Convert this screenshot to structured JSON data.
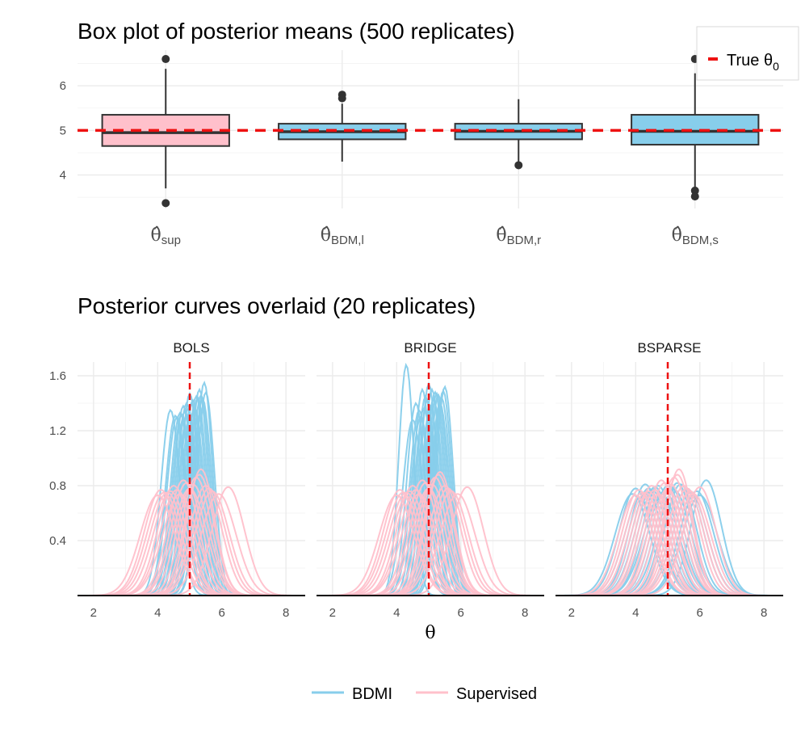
{
  "chart_data": [
    {
      "type": "box",
      "title": "Box plot of posterior means (500 replicates)",
      "ylim": [
        3.25,
        6.8
      ],
      "yticks": [
        4,
        5,
        6
      ],
      "reference_line": {
        "value": 5,
        "label": "True θ",
        "label_sub": "0",
        "color": "#ee1111"
      },
      "boxes": [
        {
          "label": "θ̂",
          "sub": "sup",
          "fill": "#ffc0cb",
          "q1": 4.65,
          "median": 4.95,
          "q3": 5.35,
          "whisker_low": 3.7,
          "whisker_high": 6.38,
          "outliers": [
            6.6,
            3.37
          ]
        },
        {
          "label": "θ̂",
          "sub": "BDM,l",
          "fill": "#87ceeb",
          "q1": 4.8,
          "median": 4.97,
          "q3": 5.15,
          "whisker_low": 4.3,
          "whisker_high": 5.6,
          "outliers": [
            5.8,
            5.72
          ]
        },
        {
          "label": "θ̂",
          "sub": "BDM,r",
          "fill": "#87ceeb",
          "q1": 4.8,
          "median": 4.98,
          "q3": 5.15,
          "whisker_low": 4.3,
          "whisker_high": 5.7,
          "outliers": [
            4.22
          ]
        },
        {
          "label": "θ̂",
          "sub": "BDM,s",
          "fill": "#87ceeb",
          "q1": 4.68,
          "median": 4.98,
          "q3": 5.35,
          "whisker_low": 3.72,
          "whisker_high": 6.28,
          "outliers": [
            6.6,
            3.65,
            3.52
          ]
        }
      ]
    },
    {
      "type": "line",
      "title": "Posterior curves overlaid (20 replicates)",
      "xlabel": "θ",
      "xlim": [
        1.5,
        8.6
      ],
      "ylim": [
        0,
        1.7
      ],
      "xticks": [
        2,
        4,
        6,
        8
      ],
      "yticks": [
        0.4,
        0.8,
        1.2,
        1.6
      ],
      "reference_line": {
        "value": 5,
        "color": "#ee1111"
      },
      "legend": {
        "position": "bottom",
        "entries": [
          {
            "name": "BDMI",
            "color": "#87ceeb"
          },
          {
            "name": "Supervised",
            "color": "#ffc0cb"
          }
        ]
      },
      "panels": [
        {
          "strip": "BOLS",
          "series": [
            {
              "name": "BDMI",
              "curves": [
                {
                  "mean": 4.4,
                  "peak": 1.35
                },
                {
                  "mean": 4.6,
                  "peak": 1.3
                },
                {
                  "mean": 5.0,
                  "peak": 1.47
                },
                {
                  "mean": 5.45,
                  "peak": 1.55
                },
                {
                  "mean": 4.9,
                  "peak": 1.4
                },
                {
                  "mean": 5.2,
                  "peak": 1.45
                },
                {
                  "mean": 5.3,
                  "peak": 1.5
                },
                {
                  "mean": 4.8,
                  "peak": 1.38
                },
                {
                  "mean": 5.1,
                  "peak": 1.42
                },
                {
                  "mean": 4.7,
                  "peak": 1.33
                },
                {
                  "mean": 5.5,
                  "peak": 1.48
                },
                {
                  "mean": 4.95,
                  "peak": 1.36
                },
                {
                  "mean": 5.25,
                  "peak": 1.44
                },
                {
                  "mean": 5.05,
                  "peak": 1.4
                },
                {
                  "mean": 4.85,
                  "peak": 1.34
                },
                {
                  "mean": 5.35,
                  "peak": 1.46
                },
                {
                  "mean": 5.15,
                  "peak": 1.37
                },
                {
                  "mean": 4.75,
                  "peak": 1.32
                },
                {
                  "mean": 5.4,
                  "peak": 1.43
                },
                {
                  "mean": 4.55,
                  "peak": 1.31
                }
              ]
            },
            {
              "name": "Supervised",
              "curves": [
                {
                  "mean": 4.1,
                  "peak": 0.77
                },
                {
                  "mean": 4.3,
                  "peak": 0.75
                },
                {
                  "mean": 4.5,
                  "peak": 0.8
                },
                {
                  "mean": 4.7,
                  "peak": 0.74
                },
                {
                  "mean": 4.9,
                  "peak": 0.82
                },
                {
                  "mean": 5.0,
                  "peak": 0.78
                },
                {
                  "mean": 5.2,
                  "peak": 0.86
                },
                {
                  "mean": 5.35,
                  "peak": 0.92
                },
                {
                  "mean": 5.5,
                  "peak": 0.8
                },
                {
                  "mean": 5.7,
                  "peak": 0.76
                },
                {
                  "mean": 6.2,
                  "peak": 0.79
                },
                {
                  "mean": 4.0,
                  "peak": 0.73
                },
                {
                  "mean": 4.6,
                  "peak": 0.77
                },
                {
                  "mean": 4.8,
                  "peak": 0.84
                },
                {
                  "mean": 5.1,
                  "peak": 0.81
                },
                {
                  "mean": 5.3,
                  "peak": 0.88
                },
                {
                  "mean": 5.6,
                  "peak": 0.78
                },
                {
                  "mean": 4.4,
                  "peak": 0.76
                },
                {
                  "mean": 5.9,
                  "peak": 0.74
                },
                {
                  "mean": 4.2,
                  "peak": 0.75
                }
              ]
            }
          ]
        },
        {
          "strip": "BRIDGE",
          "series": [
            {
              "name": "BDMI",
              "curves": [
                {
                  "mean": 4.3,
                  "peak": 1.68
                },
                {
                  "mean": 4.8,
                  "peak": 1.5
                },
                {
                  "mean": 5.0,
                  "peak": 1.54
                },
                {
                  "mean": 5.2,
                  "peak": 1.48
                },
                {
                  "mean": 5.5,
                  "peak": 1.52
                },
                {
                  "mean": 4.6,
                  "peak": 1.4
                },
                {
                  "mean": 4.9,
                  "peak": 1.45
                },
                {
                  "mean": 5.1,
                  "peak": 1.5
                },
                {
                  "mean": 5.3,
                  "peak": 1.46
                },
                {
                  "mean": 4.7,
                  "peak": 1.35
                },
                {
                  "mean": 5.4,
                  "peak": 1.44
                },
                {
                  "mean": 4.95,
                  "peak": 1.42
                },
                {
                  "mean": 5.05,
                  "peak": 1.38
                },
                {
                  "mean": 5.25,
                  "peak": 1.47
                },
                {
                  "mean": 4.85,
                  "peak": 1.36
                },
                {
                  "mean": 5.15,
                  "peak": 1.43
                },
                {
                  "mean": 5.35,
                  "peak": 1.4
                },
                {
                  "mean": 4.75,
                  "peak": 1.3
                },
                {
                  "mean": 5.45,
                  "peak": 1.49
                },
                {
                  "mean": 4.5,
                  "peak": 1.28
                }
              ]
            },
            {
              "name": "Supervised",
              "curves": [
                {
                  "mean": 4.1,
                  "peak": 0.77
                },
                {
                  "mean": 4.3,
                  "peak": 0.75
                },
                {
                  "mean": 4.5,
                  "peak": 0.8
                },
                {
                  "mean": 4.7,
                  "peak": 0.74
                },
                {
                  "mean": 4.9,
                  "peak": 0.82
                },
                {
                  "mean": 5.0,
                  "peak": 0.78
                },
                {
                  "mean": 5.2,
                  "peak": 0.86
                },
                {
                  "mean": 5.35,
                  "peak": 0.9
                },
                {
                  "mean": 5.5,
                  "peak": 0.8
                },
                {
                  "mean": 5.7,
                  "peak": 0.76
                },
                {
                  "mean": 6.2,
                  "peak": 0.79
                },
                {
                  "mean": 4.0,
                  "peak": 0.73
                },
                {
                  "mean": 4.6,
                  "peak": 0.77
                },
                {
                  "mean": 4.8,
                  "peak": 0.84
                },
                {
                  "mean": 5.1,
                  "peak": 0.81
                },
                {
                  "mean": 5.3,
                  "peak": 0.88
                },
                {
                  "mean": 5.6,
                  "peak": 0.78
                },
                {
                  "mean": 4.4,
                  "peak": 0.76
                },
                {
                  "mean": 5.9,
                  "peak": 0.74
                },
                {
                  "mean": 4.2,
                  "peak": 0.75
                }
              ]
            }
          ]
        },
        {
          "strip": "BSPARSE",
          "series": [
            {
              "name": "BDMI",
              "curves": [
                {
                  "mean": 4.0,
                  "peak": 0.78
                },
                {
                  "mean": 4.3,
                  "peak": 0.81
                },
                {
                  "mean": 4.5,
                  "peak": 0.77
                },
                {
                  "mean": 4.7,
                  "peak": 0.8
                },
                {
                  "mean": 4.9,
                  "peak": 0.76
                },
                {
                  "mean": 5.1,
                  "peak": 0.79
                },
                {
                  "mean": 5.3,
                  "peak": 0.82
                },
                {
                  "mean": 5.6,
                  "peak": 0.78
                },
                {
                  "mean": 5.9,
                  "peak": 0.76
                },
                {
                  "mean": 6.2,
                  "peak": 0.84
                },
                {
                  "mean": 4.2,
                  "peak": 0.75
                },
                {
                  "mean": 4.6,
                  "peak": 0.79
                },
                {
                  "mean": 4.8,
                  "peak": 0.74
                },
                {
                  "mean": 5.0,
                  "peak": 0.8
                },
                {
                  "mean": 5.2,
                  "peak": 0.77
                },
                {
                  "mean": 5.4,
                  "peak": 0.81
                },
                {
                  "mean": 5.7,
                  "peak": 0.75
                },
                {
                  "mean": 4.4,
                  "peak": 0.78
                },
                {
                  "mean": 6.0,
                  "peak": 0.73
                },
                {
                  "mean": 3.9,
                  "peak": 0.74
                }
              ]
            },
            {
              "name": "Supervised",
              "curves": [
                {
                  "mean": 4.1,
                  "peak": 0.77
                },
                {
                  "mean": 4.3,
                  "peak": 0.75
                },
                {
                  "mean": 4.5,
                  "peak": 0.8
                },
                {
                  "mean": 4.7,
                  "peak": 0.74
                },
                {
                  "mean": 4.9,
                  "peak": 0.82
                },
                {
                  "mean": 5.0,
                  "peak": 0.78
                },
                {
                  "mean": 5.2,
                  "peak": 0.86
                },
                {
                  "mean": 5.35,
                  "peak": 0.92
                },
                {
                  "mean": 5.5,
                  "peak": 0.8
                },
                {
                  "mean": 5.7,
                  "peak": 0.76
                },
                {
                  "mean": 6.0,
                  "peak": 0.79
                },
                {
                  "mean": 4.0,
                  "peak": 0.73
                },
                {
                  "mean": 4.6,
                  "peak": 0.77
                },
                {
                  "mean": 4.8,
                  "peak": 0.84
                },
                {
                  "mean": 5.1,
                  "peak": 0.81
                },
                {
                  "mean": 5.3,
                  "peak": 0.88
                },
                {
                  "mean": 5.6,
                  "peak": 0.78
                },
                {
                  "mean": 4.4,
                  "peak": 0.76
                },
                {
                  "mean": 5.8,
                  "peak": 0.74
                },
                {
                  "mean": 4.2,
                  "peak": 0.75
                }
              ]
            }
          ]
        }
      ]
    }
  ]
}
